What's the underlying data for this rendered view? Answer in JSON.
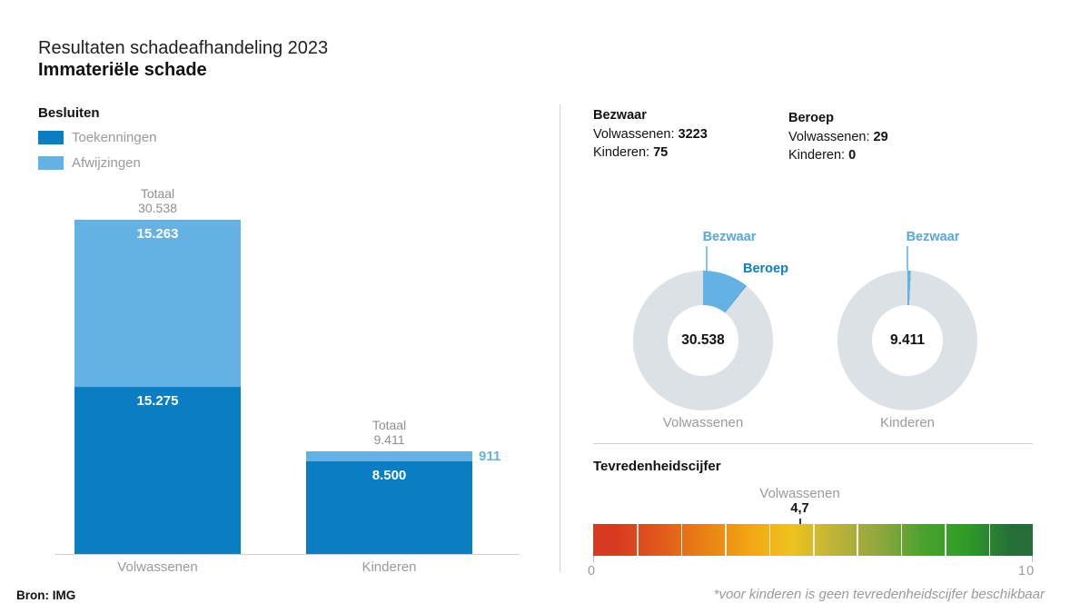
{
  "header": {
    "title": "Resultaten schadeafhandeling 2023",
    "subtitle": "Immateriële schade"
  },
  "footer": {
    "source": "Bron: IMG",
    "note": "*voor kinderen is geen tevredenheidscijfer beschikbaar"
  },
  "colors": {
    "dark_blue": "#0b7dc2",
    "light_blue": "#64b2e4",
    "donut_gray": "#dce1e6",
    "bezwaar_label_blue": "#54a9de",
    "beroep_label_blue": "#0b7dc2",
    "text_gray": "#9a9a9a",
    "marker_dark": "#3a3a3a"
  },
  "stats": {
    "bezwaar": {
      "title": "Bezwaar",
      "volwassenen_label": "Volwassenen:",
      "volwassenen_value": "3223",
      "kinderen_label": "Kinderen:",
      "kinderen_value": "75"
    },
    "beroep": {
      "title": "Beroep",
      "volwassenen_label": "Volwassenen:",
      "volwassenen_value": "29",
      "kinderen_label": "Kinderen:",
      "kinderen_value": "0"
    }
  },
  "chart_data": [
    {
      "type": "bar",
      "subtype": "stacked-vertical",
      "title": "Besluiten",
      "categories": [
        "Volwassenen",
        "Kinderen"
      ],
      "series": [
        {
          "name": "Toekenningen",
          "color": "#0b7dc2",
          "values": [
            15275,
            8500
          ],
          "value_labels": [
            "15.275",
            "8.500"
          ]
        },
        {
          "name": "Afwijzingen",
          "color": "#64b2e4",
          "values": [
            15263,
            911
          ],
          "value_labels": [
            "15.263",
            "911"
          ]
        }
      ],
      "total_label": "Totaal",
      "totals": [
        30538,
        9411
      ],
      "total_labels": [
        "30.538",
        "9.411"
      ],
      "ylim": [
        0,
        30538
      ],
      "grid": false
    },
    {
      "type": "pie",
      "subtype": "donut",
      "category": "Volwassenen",
      "total": 30538,
      "center_label": "30.538",
      "slices": [
        {
          "name": "Bezwaar",
          "value": 3223,
          "color": "#64b2e4"
        },
        {
          "name": "Beroep",
          "value": 29,
          "color": "#0b7dc2"
        },
        {
          "name": "",
          "value": 27286,
          "color": "#dce1e6"
        }
      ]
    },
    {
      "type": "pie",
      "subtype": "donut",
      "category": "Kinderen",
      "total": 9411,
      "center_label": "9.411",
      "slices": [
        {
          "name": "Bezwaar",
          "value": 75,
          "color": "#64b2e4"
        },
        {
          "name": "",
          "value": 9336,
          "color": "#dce1e6"
        }
      ]
    },
    {
      "type": "bar",
      "subtype": "linear-gauge",
      "title": "Tevredenheidscijfer",
      "xlim": [
        0,
        10
      ],
      "tick_labels": [
        "0",
        "10"
      ],
      "marker": {
        "label": "Volwassenen",
        "value": 4.7,
        "value_label": "4,7"
      },
      "segment_colors": [
        "#d63b21",
        "#e0591c",
        "#e97f15",
        "#f2a412",
        "#eec31e",
        "#bdb338",
        "#90a83e",
        "#4aa22d",
        "#2f9b28",
        "#256e38"
      ]
    }
  ]
}
